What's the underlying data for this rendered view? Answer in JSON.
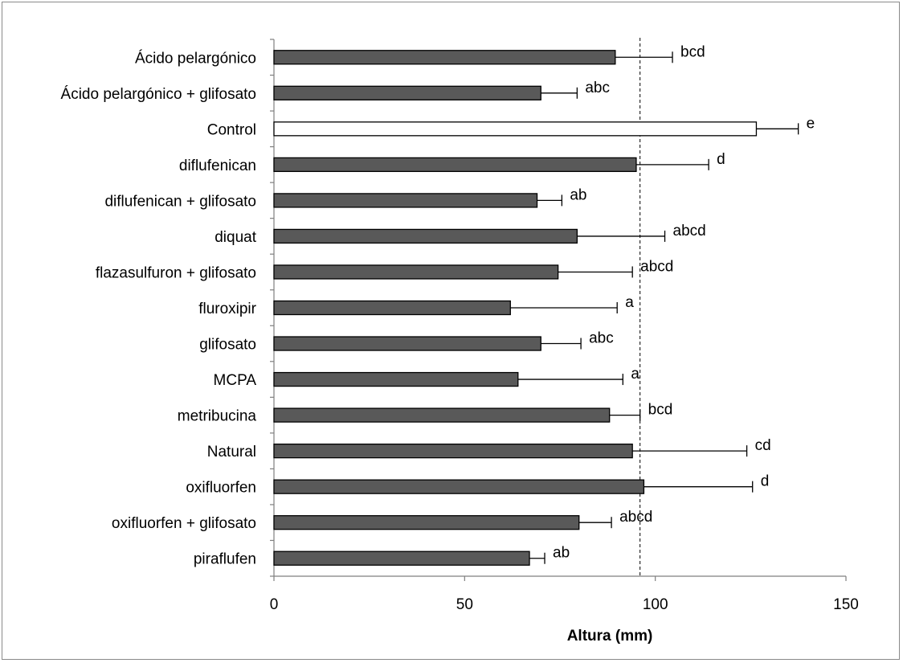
{
  "chart_data": {
    "type": "bar",
    "orientation": "horizontal",
    "xlabel": "Altura (mm)",
    "xlim": [
      0,
      150
    ],
    "xticks": [
      0,
      50,
      100,
      150
    ],
    "reference_line": {
      "value": 96,
      "style": "dashed"
    },
    "grid": false,
    "colors": {
      "treatment": "#595959",
      "control": "#ffffff",
      "outline": "#000000"
    },
    "categories": [
      "Ácido pelargónico",
      "Ácido pelargónico + glifosato",
      "Control",
      "diflufenican",
      "diflufenican + glifosato",
      "diquat",
      "flazasulfuron + glifosato",
      "fluroxipir",
      "glifosato",
      "MCPA",
      "metribucina",
      "Natural",
      "oxifluorfen",
      "oxifluorfen + glifosato",
      "piraflufen"
    ],
    "values": [
      89.5,
      70,
      126.5,
      95,
      69,
      79.5,
      74.5,
      62,
      70,
      64,
      88,
      94,
      97,
      80,
      67
    ],
    "error_upper": [
      104.5,
      79.5,
      137.5,
      114,
      75.5,
      102.5,
      94,
      90,
      80.5,
      91.5,
      96,
      124,
      125.5,
      88.5,
      71
    ],
    "significance": [
      "bcd",
      "abc",
      "e",
      "d",
      "ab",
      "abcd",
      "abcd",
      "a",
      "abc",
      "a",
      "bcd",
      "cd",
      "d",
      "abcd",
      "ab"
    ]
  }
}
